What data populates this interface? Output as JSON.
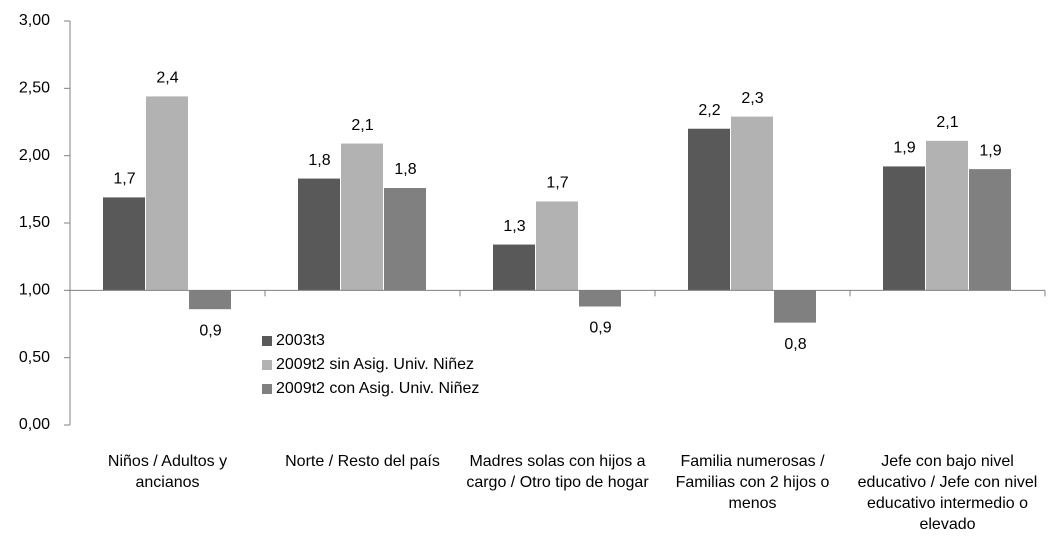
{
  "chart_data": {
    "type": "bar",
    "categories": [
      "Niños / Adultos y ancianos",
      "Norte / Resto del país",
      "Madres solas con hijos a cargo / Otro tipo de hogar",
      "Familia numerosas / Familias con 2 hijos o menos",
      "Jefe con bajo nivel educativo / Jefe con nivel educativo intermedio o elevado"
    ],
    "series": [
      {
        "name": "2003t3",
        "color": "#595959",
        "values": [
          1.69,
          1.83,
          1.34,
          2.2,
          1.92
        ],
        "value_labels": [
          "1,7",
          "1,8",
          "1,3",
          "2,2",
          "1,9"
        ]
      },
      {
        "name": "2009t2 sin Asig. Univ. Niñez",
        "color": "#b2b2b2",
        "values": [
          2.44,
          2.09,
          1.66,
          2.29,
          2.11
        ],
        "value_labels": [
          "2,4",
          "2,1",
          "1,7",
          "2,3",
          "2,1"
        ]
      },
      {
        "name": "2009t2 con Asig. Univ. Niñez",
        "color": "#808080",
        "values": [
          0.86,
          1.76,
          0.88,
          0.76,
          1.9
        ],
        "value_labels": [
          "0,9",
          "1,8",
          "0,9",
          "0,8",
          "1,9"
        ]
      }
    ],
    "ylim": [
      0,
      3
    ],
    "yticks": [
      {
        "value": 0,
        "label": "0,00"
      },
      {
        "value": 0.5,
        "label": "0,50"
      },
      {
        "value": 1,
        "label": "1,00"
      },
      {
        "value": 1.5,
        "label": "1,50"
      },
      {
        "value": 2,
        "label": "2,00"
      },
      {
        "value": 2.5,
        "label": "2,50"
      },
      {
        "value": 3,
        "label": "3,00"
      }
    ],
    "x_axis_crosses": 1,
    "grid": false
  }
}
